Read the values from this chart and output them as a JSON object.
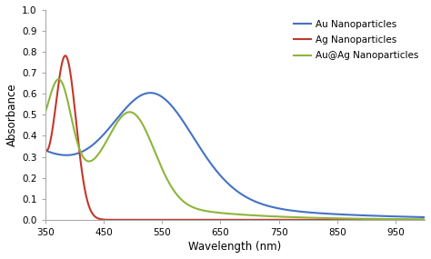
{
  "title": "",
  "xlabel": "Wavelength (nm)",
  "ylabel": "Absorbance",
  "xlim": [
    350,
    1000
  ],
  "ylim": [
    0,
    1.0
  ],
  "xticks": [
    350,
    450,
    550,
    650,
    750,
    850,
    950
  ],
  "yticks": [
    0,
    0.1,
    0.2,
    0.3,
    0.4,
    0.5,
    0.6,
    0.7,
    0.8,
    0.9,
    1
  ],
  "legend_labels": [
    "Au Nanoparticles",
    "Ag Nanoparticles",
    "Au@Ag Nanoparticles"
  ],
  "line_colors": [
    "#4472C4",
    "#C0392B",
    "#8DB53C"
  ],
  "background_color": "#ffffff",
  "figsize": [
    4.74,
    2.85
  ],
  "dpi": 100
}
